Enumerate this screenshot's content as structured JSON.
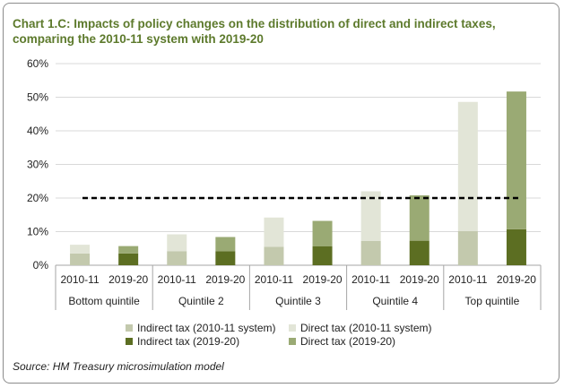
{
  "chart_title_line1": "Chart 1.C: Impacts of policy changes on the distribution of direct and indirect taxes,",
  "chart_title_line2": "comparing the 2010-11 system with 2019-20",
  "source": "Source: HM Treasury microsimulation model",
  "colors": {
    "indirect_2010": "#c3c9ad",
    "direct_2010": "#e2e5d7",
    "indirect_2019": "#5c6e22",
    "direct_2019": "#9aaa74",
    "title": "#5d7a2c",
    "reference_line": "#000000"
  },
  "chart_data": {
    "type": "bar",
    "stacked": true,
    "title": "Chart 1.C: Impacts of policy changes on the distribution of direct and indirect taxes, comparing the 2010-11 system with 2019-20",
    "xlabel": "",
    "ylabel": "",
    "ylim": [
      0,
      0.6
    ],
    "yticks": [
      "0%",
      "10%",
      "20%",
      "30%",
      "40%",
      "50%",
      "60%"
    ],
    "grid": true,
    "legend_position": "bottom",
    "groups": [
      "Bottom quintile",
      "Quintile 2",
      "Quintile 3",
      "Quintile 4",
      "Top quintile"
    ],
    "years": [
      "2010-11",
      "2019-20"
    ],
    "reference_line": 0.2,
    "bars": [
      {
        "group": "Bottom quintile",
        "year": "2010-11",
        "indirect": 0.035,
        "direct": 0.026
      },
      {
        "group": "Bottom quintile",
        "year": "2019-20",
        "indirect": 0.035,
        "direct": 0.022
      },
      {
        "group": "Quintile 2",
        "year": "2010-11",
        "indirect": 0.042,
        "direct": 0.05
      },
      {
        "group": "Quintile 2",
        "year": "2019-20",
        "indirect": 0.042,
        "direct": 0.042
      },
      {
        "group": "Quintile 3",
        "year": "2010-11",
        "indirect": 0.055,
        "direct": 0.087
      },
      {
        "group": "Quintile 3",
        "year": "2019-20",
        "indirect": 0.056,
        "direct": 0.076
      },
      {
        "group": "Quintile 4",
        "year": "2010-11",
        "indirect": 0.072,
        "direct": 0.148
      },
      {
        "group": "Quintile 4",
        "year": "2019-20",
        "indirect": 0.073,
        "direct": 0.135
      },
      {
        "group": "Top quintile",
        "year": "2010-11",
        "indirect": 0.102,
        "direct": 0.384
      },
      {
        "group": "Top quintile",
        "year": "2019-20",
        "indirect": 0.107,
        "direct": 0.41
      }
    ],
    "legend": [
      {
        "label": "Indirect tax (2010-11 system)",
        "key": "indirect_2010"
      },
      {
        "label": "Direct tax (2010-11 system)",
        "key": "direct_2010"
      },
      {
        "label": "Indirect tax (2019-20)",
        "key": "indirect_2019"
      },
      {
        "label": "Direct tax (2019-20)",
        "key": "direct_2019"
      }
    ]
  }
}
